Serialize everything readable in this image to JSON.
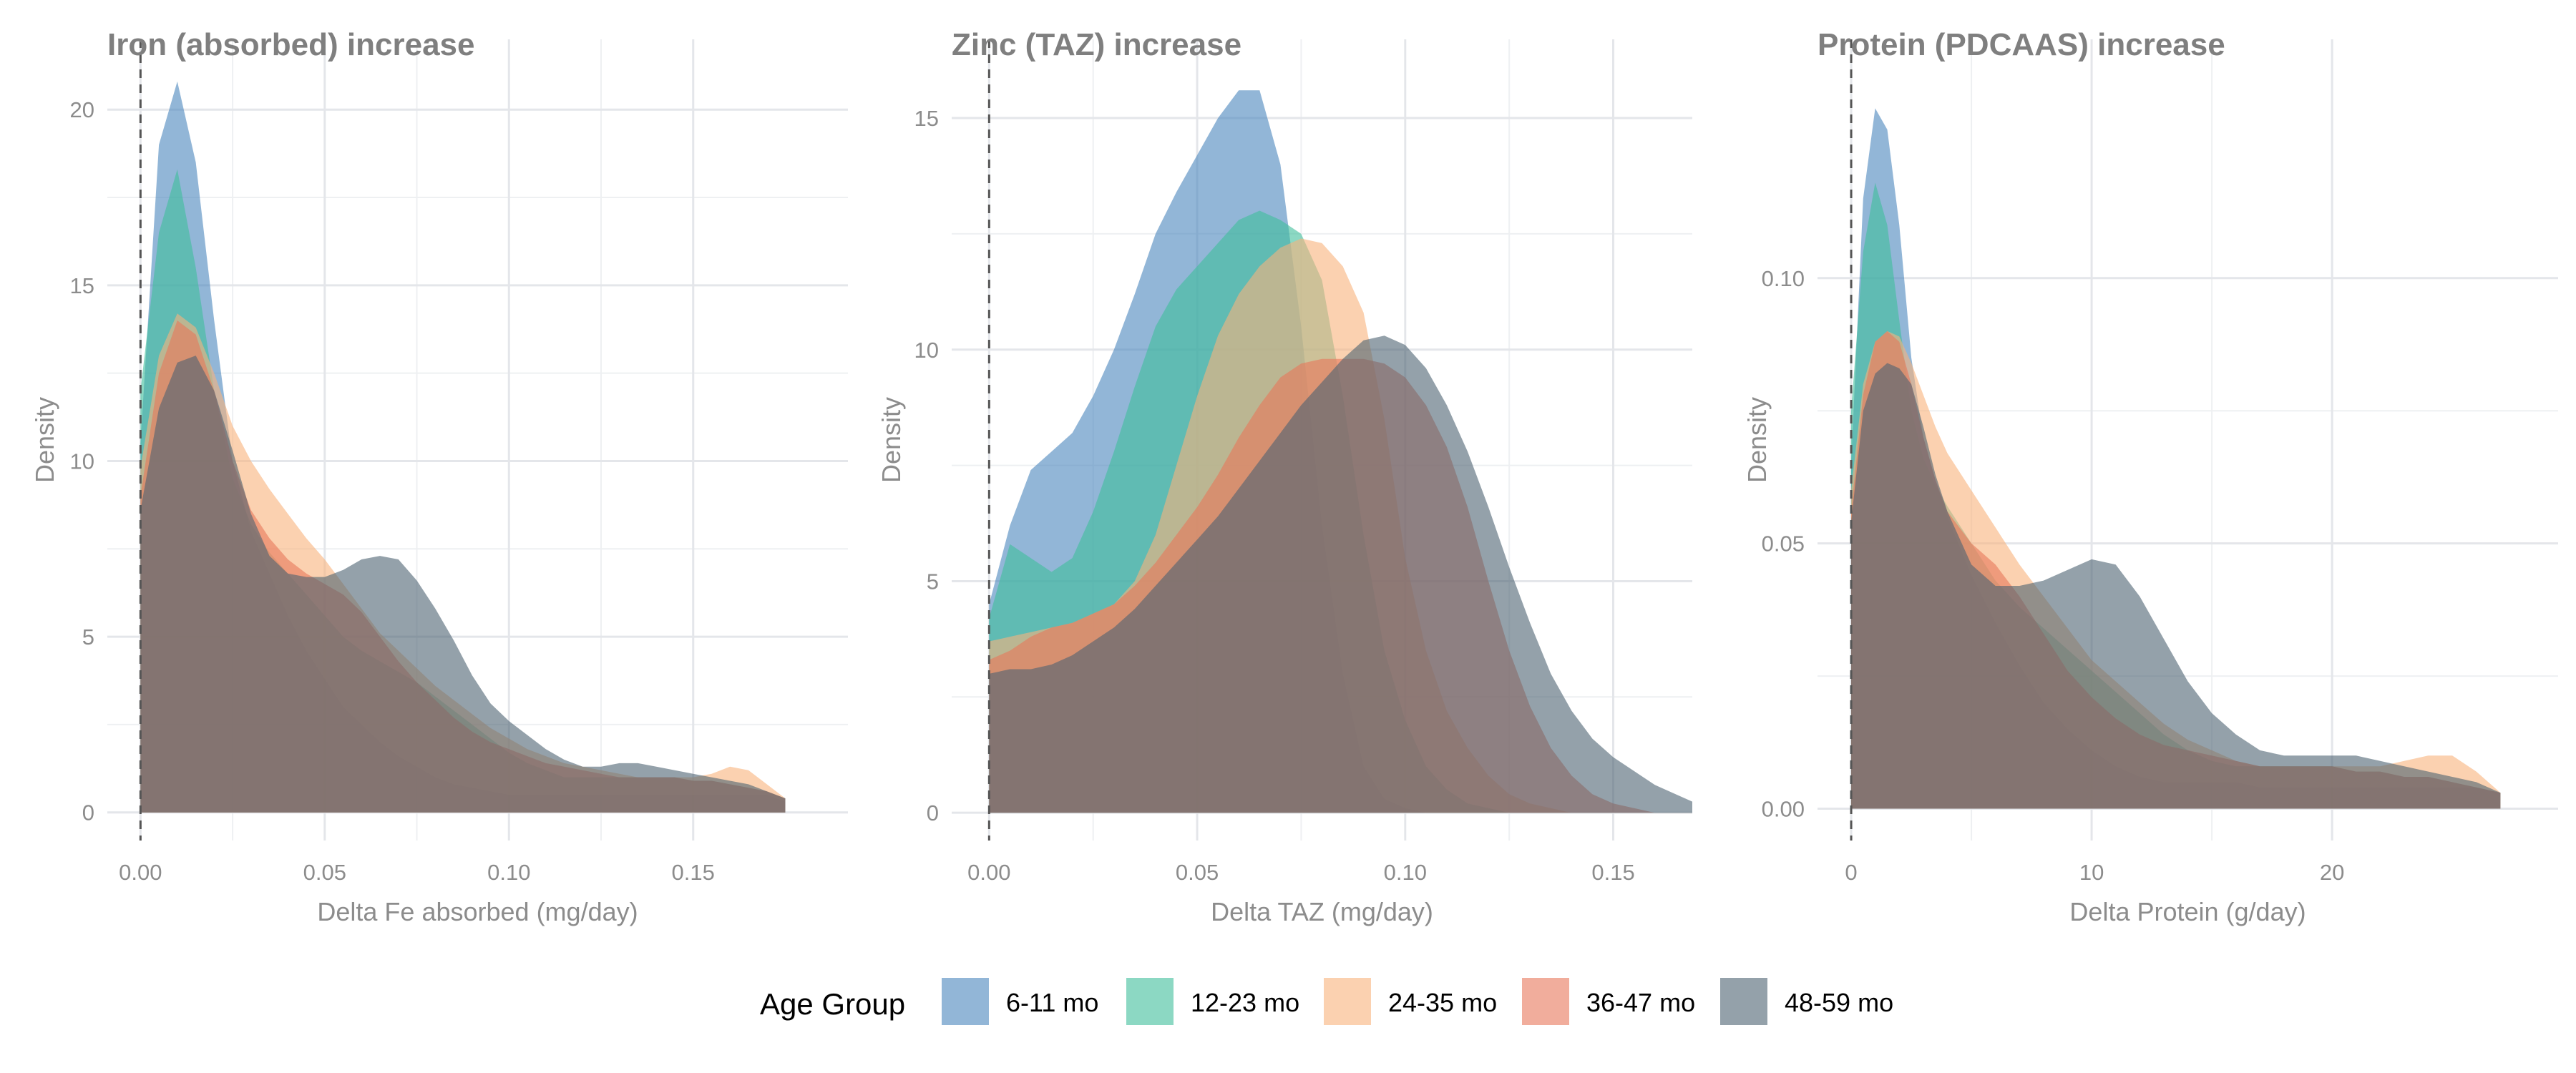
{
  "legend": {
    "title": "Age Group",
    "items": [
      {
        "label": "6-11 mo",
        "color": "#4a86bd"
      },
      {
        "label": "12-23 mo",
        "color": "#3fbe9b"
      },
      {
        "label": "24-35 mo",
        "color": "#f9b27c"
      },
      {
        "label": "36-47 mo",
        "color": "#e8775a"
      },
      {
        "label": "48-59 mo",
        "color": "#4c6272"
      }
    ]
  },
  "chart_data": [
    {
      "type": "area",
      "title": "Iron (absorbed) increase",
      "xlabel": "Delta Fe absorbed (mg/day)",
      "ylabel": "Density",
      "xlim": [
        -0.009,
        0.192
      ],
      "ylim": [
        -0.8,
        22
      ],
      "xticks": [
        0,
        0.05,
        0.1,
        0.15
      ],
      "xtick_labels": [
        "0.00",
        "0.05",
        "0.10",
        "0.15"
      ],
      "yticks": [
        0,
        5,
        10,
        15,
        20
      ],
      "ytick_labels": [
        "0",
        "5",
        "10",
        "15",
        "20"
      ],
      "vline": 0,
      "grid": true,
      "x": [
        0,
        0.005,
        0.01,
        0.015,
        0.02,
        0.025,
        0.03,
        0.035,
        0.04,
        0.045,
        0.05,
        0.055,
        0.06,
        0.065,
        0.07,
        0.075,
        0.08,
        0.085,
        0.09,
        0.095,
        0.1,
        0.105,
        0.11,
        0.115,
        0.12,
        0.125,
        0.13,
        0.135,
        0.14,
        0.145,
        0.15,
        0.155,
        0.16,
        0.165,
        0.17,
        0.175
      ],
      "series": [
        {
          "name": "6-11 mo",
          "values": [
            10.5,
            19.0,
            20.8,
            18.5,
            14.0,
            10.0,
            8.0,
            6.8,
            5.6,
            4.6,
            3.8,
            3.0,
            2.5,
            2.0,
            1.6,
            1.3,
            1.0,
            0.8,
            0.7,
            0.6,
            0.5,
            0.5,
            0.5,
            0.5,
            0.5,
            0.5,
            0.5,
            0.5,
            0.5,
            0.5,
            0.5,
            0.5,
            0.5,
            0.5,
            0.5,
            0.3
          ]
        },
        {
          "name": "12-23 mo",
          "values": [
            12.0,
            16.5,
            18.3,
            15.5,
            12.0,
            9.5,
            8.2,
            7.4,
            6.8,
            6.2,
            5.6,
            5.0,
            4.6,
            4.3,
            4.0,
            3.7,
            3.3,
            2.9,
            2.5,
            2.1,
            1.7,
            1.4,
            1.2,
            1.0,
            1.0,
            1.0,
            1.0,
            1.0,
            1.0,
            1.0,
            0.9,
            0.9,
            0.8,
            0.7,
            0.6,
            0.4
          ]
        },
        {
          "name": "24-35 mo",
          "values": [
            9.8,
            13.0,
            14.2,
            13.8,
            12.5,
            11.0,
            10.0,
            9.2,
            8.5,
            7.8,
            7.2,
            6.5,
            5.8,
            5.1,
            4.6,
            4.1,
            3.6,
            3.2,
            2.8,
            2.4,
            2.1,
            1.8,
            1.6,
            1.4,
            1.3,
            1.2,
            1.1,
            1.0,
            1.0,
            1.0,
            1.0,
            1.1,
            1.3,
            1.2,
            0.8,
            0.4
          ]
        },
        {
          "name": "36-47 mo",
          "values": [
            9.0,
            12.5,
            14.0,
            13.6,
            12.0,
            10.0,
            8.6,
            7.8,
            7.2,
            6.8,
            6.5,
            6.2,
            5.7,
            5.0,
            4.3,
            3.7,
            3.2,
            2.7,
            2.3,
            2.0,
            1.8,
            1.6,
            1.4,
            1.3,
            1.2,
            1.1,
            1.0,
            1.0,
            1.0,
            1.0,
            0.9,
            0.9,
            0.8,
            0.7,
            0.6,
            0.4
          ]
        },
        {
          "name": "48-59 mo",
          "values": [
            8.6,
            11.5,
            12.8,
            13.0,
            12.0,
            10.3,
            8.5,
            7.3,
            6.8,
            6.7,
            6.7,
            6.9,
            7.2,
            7.3,
            7.2,
            6.6,
            5.8,
            4.9,
            3.9,
            3.1,
            2.6,
            2.2,
            1.8,
            1.5,
            1.3,
            1.3,
            1.4,
            1.4,
            1.3,
            1.2,
            1.1,
            1.0,
            0.9,
            0.8,
            0.6,
            0.4
          ]
        }
      ]
    },
    {
      "type": "area",
      "title": "Zinc (TAZ) increase",
      "xlabel": "Delta TAZ (mg/day)",
      "ylabel": "Density",
      "xlim": [
        -0.009,
        0.169
      ],
      "ylim": [
        -0.6,
        16.7
      ],
      "xticks": [
        0,
        0.05,
        0.1,
        0.15
      ],
      "xtick_labels": [
        "0.00",
        "0.05",
        "0.10",
        "0.15"
      ],
      "yticks": [
        0,
        5,
        10,
        15
      ],
      "ytick_labels": [
        "0",
        "5",
        "10",
        "15"
      ],
      "vline": 0,
      "grid": true,
      "x": [
        0,
        0.005,
        0.01,
        0.015,
        0.02,
        0.025,
        0.03,
        0.035,
        0.04,
        0.045,
        0.05,
        0.055,
        0.06,
        0.065,
        0.07,
        0.075,
        0.08,
        0.085,
        0.09,
        0.095,
        0.1,
        0.105,
        0.11,
        0.115,
        0.12,
        0.125,
        0.13,
        0.135,
        0.14,
        0.145,
        0.15,
        0.155,
        0.16,
        0.165,
        0.17
      ],
      "series": [
        {
          "name": "6-11 mo",
          "values": [
            4.5,
            6.2,
            7.4,
            7.8,
            8.2,
            9.0,
            10.0,
            11.2,
            12.5,
            13.4,
            14.2,
            15.0,
            15.6,
            15.6,
            14.0,
            10.5,
            6.2,
            3.0,
            1.0,
            0.3,
            0.1,
            0,
            0,
            0,
            0,
            0,
            0,
            0,
            0,
            0,
            0,
            0,
            0,
            0,
            0
          ]
        },
        {
          "name": "12-23 mo",
          "values": [
            4.2,
            5.8,
            5.5,
            5.2,
            5.5,
            6.5,
            7.8,
            9.2,
            10.5,
            11.3,
            11.8,
            12.3,
            12.8,
            13.0,
            12.8,
            12.5,
            11.5,
            9.0,
            6.0,
            3.5,
            2.0,
            1.0,
            0.5,
            0.2,
            0.1,
            0,
            0,
            0,
            0,
            0,
            0,
            0,
            0,
            0,
            0
          ]
        },
        {
          "name": "24-35 mo",
          "values": [
            3.7,
            3.8,
            3.9,
            4.0,
            4.1,
            4.3,
            4.5,
            5.0,
            6.0,
            7.5,
            9.0,
            10.3,
            11.2,
            11.8,
            12.2,
            12.4,
            12.3,
            11.8,
            10.8,
            8.5,
            5.5,
            3.5,
            2.2,
            1.4,
            0.8,
            0.4,
            0.2,
            0.1,
            0,
            0,
            0,
            0,
            0,
            0,
            0
          ]
        },
        {
          "name": "36-47 mo",
          "values": [
            3.3,
            3.5,
            3.8,
            4.0,
            4.1,
            4.3,
            4.5,
            4.9,
            5.4,
            6.0,
            6.6,
            7.3,
            8.1,
            8.8,
            9.4,
            9.7,
            9.8,
            9.8,
            9.8,
            9.7,
            9.4,
            8.8,
            7.9,
            6.6,
            5.0,
            3.5,
            2.3,
            1.4,
            0.8,
            0.4,
            0.2,
            0.1,
            0,
            0,
            0
          ]
        },
        {
          "name": "48-59 mo",
          "values": [
            3.0,
            3.1,
            3.1,
            3.2,
            3.4,
            3.7,
            4.0,
            4.4,
            4.9,
            5.4,
            5.9,
            6.4,
            7.0,
            7.6,
            8.2,
            8.8,
            9.3,
            9.8,
            10.2,
            10.3,
            10.1,
            9.6,
            8.8,
            7.8,
            6.6,
            5.3,
            4.1,
            3.0,
            2.2,
            1.6,
            1.2,
            0.9,
            0.6,
            0.4,
            0.2
          ]
        }
      ]
    },
    {
      "type": "area",
      "title": "Protein (PDCAAS) increase",
      "xlabel": "Delta Protein (g/day)",
      "ylabel": "Density",
      "xlim": [
        -1.4,
        29.4
      ],
      "ylim": [
        -0.006,
        0.145
      ],
      "xticks": [
        0,
        10,
        20
      ],
      "xtick_labels": [
        "0",
        "10",
        "20"
      ],
      "yticks": [
        0,
        0.05,
        0.1
      ],
      "ytick_labels": [
        "0.00",
        "0.05",
        "0.10"
      ],
      "vline": 0,
      "grid": true,
      "x": [
        0,
        0.5,
        1,
        1.5,
        2,
        2.5,
        3,
        3.5,
        4,
        5,
        6,
        7,
        8,
        9,
        10,
        11,
        12,
        13,
        14,
        15,
        16,
        17,
        18,
        19,
        20,
        21,
        22,
        23,
        24,
        25,
        26,
        27
      ],
      "series": [
        {
          "name": "6-11 mo",
          "values": [
            0.065,
            0.115,
            0.132,
            0.128,
            0.11,
            0.085,
            0.07,
            0.062,
            0.055,
            0.044,
            0.035,
            0.027,
            0.02,
            0.015,
            0.011,
            0.008,
            0.006,
            0.005,
            0.005,
            0.005,
            0.005,
            0.004,
            0.004,
            0.004,
            0.004,
            0.004,
            0.004,
            0.004,
            0.004,
            0.004,
            0.004,
            0.003
          ]
        },
        {
          "name": "12-23 mo",
          "values": [
            0.075,
            0.105,
            0.118,
            0.11,
            0.092,
            0.075,
            0.066,
            0.061,
            0.057,
            0.05,
            0.043,
            0.038,
            0.034,
            0.03,
            0.026,
            0.022,
            0.018,
            0.014,
            0.011,
            0.009,
            0.008,
            0.008,
            0.008,
            0.008,
            0.008,
            0.007,
            0.007,
            0.006,
            0.006,
            0.005,
            0.004,
            0.003
          ]
        },
        {
          "name": "24-35 mo",
          "values": [
            0.06,
            0.08,
            0.088,
            0.09,
            0.089,
            0.084,
            0.078,
            0.072,
            0.067,
            0.06,
            0.053,
            0.046,
            0.04,
            0.034,
            0.028,
            0.024,
            0.02,
            0.016,
            0.013,
            0.011,
            0.009,
            0.008,
            0.008,
            0.008,
            0.008,
            0.008,
            0.008,
            0.009,
            0.01,
            0.01,
            0.007,
            0.003
          ]
        },
        {
          "name": "36-47 mo",
          "values": [
            0.056,
            0.078,
            0.088,
            0.09,
            0.088,
            0.08,
            0.07,
            0.062,
            0.056,
            0.05,
            0.046,
            0.04,
            0.033,
            0.026,
            0.021,
            0.017,
            0.014,
            0.012,
            0.011,
            0.01,
            0.009,
            0.008,
            0.008,
            0.008,
            0.008,
            0.007,
            0.007,
            0.006,
            0.006,
            0.005,
            0.004,
            0.003
          ]
        },
        {
          "name": "48-59 mo",
          "values": [
            0.054,
            0.075,
            0.082,
            0.084,
            0.083,
            0.08,
            0.072,
            0.063,
            0.056,
            0.046,
            0.042,
            0.042,
            0.043,
            0.045,
            0.047,
            0.046,
            0.04,
            0.032,
            0.024,
            0.018,
            0.014,
            0.011,
            0.01,
            0.01,
            0.01,
            0.01,
            0.009,
            0.008,
            0.007,
            0.006,
            0.005,
            0.003
          ]
        }
      ]
    }
  ]
}
